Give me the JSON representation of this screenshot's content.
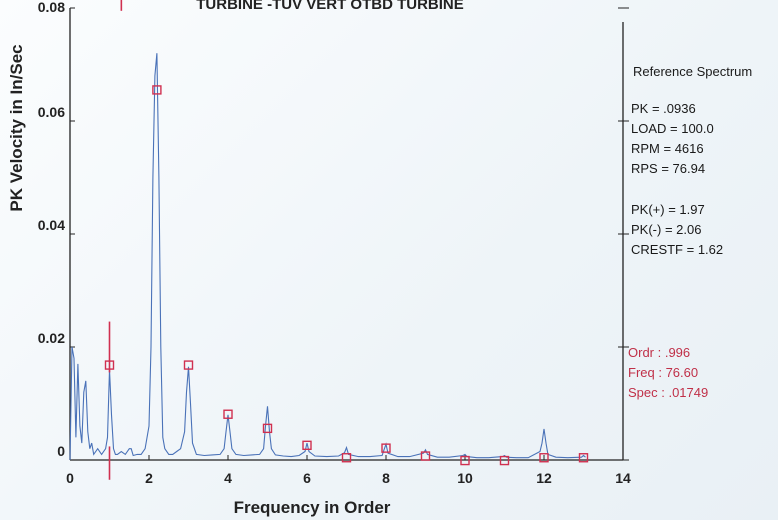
{
  "title": "TURBINE  -TUV  VERT OTBD TURBINE",
  "colors": {
    "trace": "#4a72b8",
    "marker": "#d03050",
    "cursor": "#d03050",
    "axis": "#222222",
    "cursor_text": "#c03048"
  },
  "side_panel": {
    "heading": "Reference Spectrum",
    "pk": "PK =  .0936",
    "load": "LOAD = 100.0",
    "rpm": "RPM = 4616",
    "rps": "RPS = 76.94",
    "pk_plus": "PK(+) = 1.97",
    "pk_minus": "PK(-) = 2.06",
    "crestf": "CRESTF = 1.62",
    "ordr": "Ordr :  .996",
    "freq": "Freq :  76.60",
    "spec": "Spec :  .01749"
  },
  "chart_data": {
    "type": "line",
    "title": "TURBINE  -TUV  VERT OTBD TURBINE",
    "xlabel": "Frequency in Order",
    "ylabel": "PK Velocity in In/Sec",
    "xlim": [
      0,
      14
    ],
    "ylim": [
      0,
      0.08
    ],
    "x_ticks": [
      0,
      2,
      4,
      6,
      8,
      10,
      12,
      14
    ],
    "x_tick_labels": [
      "0",
      "2",
      "4",
      "6",
      "8",
      "10",
      "12",
      "14"
    ],
    "y_ticks": [
      0,
      0.02,
      0.04,
      0.06,
      0.08
    ],
    "y_tick_labels": [
      "0",
      "0.02",
      "0.04",
      "0.06",
      "0.08"
    ],
    "grid": false,
    "series": [
      {
        "x": [
          0.0,
          0.05,
          0.1,
          0.15,
          0.2,
          0.25,
          0.3,
          0.35,
          0.4,
          0.45,
          0.5,
          0.55,
          0.6,
          0.7,
          0.8,
          0.9,
          0.95,
          1.0,
          1.05,
          1.1,
          1.15,
          1.2,
          1.3,
          1.4,
          1.5,
          1.55,
          1.6,
          1.7,
          1.8,
          1.9,
          2.0,
          2.05,
          2.1,
          2.15,
          2.2,
          2.25,
          2.3,
          2.35,
          2.4,
          2.5,
          2.6,
          2.7,
          2.8,
          2.9,
          2.95,
          3.0,
          3.05,
          3.1,
          3.2,
          3.4,
          3.6,
          3.8,
          3.9,
          3.95,
          4.0,
          4.05,
          4.1,
          4.2,
          4.4,
          4.6,
          4.8,
          4.9,
          4.95,
          5.0,
          5.05,
          5.1,
          5.2,
          5.4,
          5.6,
          5.8,
          5.95,
          6.0,
          6.05,
          6.2,
          6.5,
          6.8,
          6.95,
          7.0,
          7.05,
          7.3,
          7.6,
          7.9,
          7.95,
          8.0,
          8.05,
          8.3,
          8.6,
          8.95,
          9.0,
          9.05,
          9.3,
          9.6,
          9.95,
          10.0,
          10.05,
          10.3,
          10.6,
          10.95,
          11.0,
          11.05,
          11.3,
          11.6,
          11.9,
          11.95,
          12.0,
          12.05,
          12.1,
          12.3,
          12.6,
          12.95,
          13.0,
          13.05
        ],
        "values": [
          0.0,
          0.02,
          0.018,
          0.004,
          0.017,
          0.006,
          0.003,
          0.012,
          0.014,
          0.005,
          0.002,
          0.003,
          0.001,
          0.002,
          0.001,
          0.002,
          0.004,
          0.016,
          0.008,
          0.002,
          0.001,
          0.001,
          0.0015,
          0.001,
          0.002,
          0.002,
          0.0008,
          0.001,
          0.001,
          0.002,
          0.006,
          0.02,
          0.05,
          0.068,
          0.072,
          0.05,
          0.02,
          0.004,
          0.002,
          0.001,
          0.001,
          0.0015,
          0.002,
          0.005,
          0.012,
          0.0165,
          0.01,
          0.003,
          0.001,
          0.0008,
          0.0009,
          0.001,
          0.002,
          0.005,
          0.008,
          0.005,
          0.002,
          0.001,
          0.0008,
          0.0009,
          0.001,
          0.002,
          0.006,
          0.0095,
          0.005,
          0.002,
          0.0009,
          0.0007,
          0.0006,
          0.0008,
          0.0015,
          0.003,
          0.0015,
          0.0007,
          0.0006,
          0.0007,
          0.0013,
          0.0022,
          0.001,
          0.0006,
          0.0006,
          0.0008,
          0.0018,
          0.0028,
          0.0012,
          0.0006,
          0.0006,
          0.0012,
          0.0018,
          0.001,
          0.0005,
          0.0005,
          0.0008,
          0.001,
          0.0006,
          0.0004,
          0.0004,
          0.0006,
          0.0008,
          0.0005,
          0.0004,
          0.0004,
          0.0015,
          0.003,
          0.0055,
          0.003,
          0.001,
          0.0005,
          0.0004,
          0.0005,
          0.0008,
          0.0005
        ]
      }
    ],
    "markers": [
      {
        "x": 1.0,
        "y": 0.0168
      },
      {
        "x": 2.2,
        "y": 0.0655
      },
      {
        "x": 3.0,
        "y": 0.0168
      },
      {
        "x": 4.0,
        "y": 0.0081
      },
      {
        "x": 5.0,
        "y": 0.0056
      },
      {
        "x": 6.0,
        "y": 0.0026
      },
      {
        "x": 7.0,
        "y": 0.0004
      },
      {
        "x": 8.0,
        "y": 0.0021
      },
      {
        "x": 9.0,
        "y": 0.0007
      },
      {
        "x": 10.0,
        "y": -0.0001
      },
      {
        "x": 11.0,
        "y": -0.0001
      },
      {
        "x": 12.0,
        "y": 0.0004
      },
      {
        "x": 13.0,
        "y": 0.0004
      }
    ],
    "cursors": [
      {
        "x": 1.0,
        "y_from": 0.0155,
        "y_to": 0.0245
      },
      {
        "x": 1.0,
        "y_from": -0.0035,
        "y_to": 0.0024
      },
      {
        "x": 1.3,
        "y_from": 0.0795,
        "y_to": 0.0845
      }
    ]
  }
}
